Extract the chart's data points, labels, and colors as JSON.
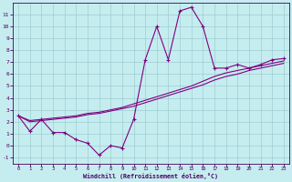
{
  "background_color": "#c5edf0",
  "grid_color": "#9dcdd1",
  "line_color": "#800080",
  "xlim": [
    -0.5,
    23.5
  ],
  "ylim": [
    -1.5,
    12.0
  ],
  "xticks": [
    0,
    1,
    2,
    3,
    4,
    5,
    6,
    7,
    8,
    9,
    10,
    11,
    12,
    13,
    14,
    15,
    16,
    17,
    18,
    19,
    20,
    21,
    22,
    23
  ],
  "yticks": [
    -1,
    0,
    1,
    2,
    3,
    4,
    5,
    6,
    7,
    8,
    9,
    10,
    11
  ],
  "xlabel": "Windchill (Refroidissement éolien,°C)",
  "hours": [
    0,
    1,
    2,
    3,
    4,
    5,
    6,
    7,
    8,
    9,
    10,
    11,
    12,
    13,
    14,
    15,
    16,
    17,
    18,
    19,
    20,
    21,
    22,
    23
  ],
  "temp_main": [
    2.5,
    1.2,
    2.2,
    1.1,
    1.1,
    0.5,
    0.2,
    -0.8,
    0.0,
    -0.2,
    2.2,
    7.2,
    10.0,
    7.2,
    11.3,
    11.6,
    10.0,
    6.5,
    6.5,
    6.8,
    6.5,
    6.8,
    7.2,
    7.3
  ],
  "temp_reg1": [
    2.5,
    2.1,
    2.2,
    2.3,
    2.4,
    2.5,
    2.7,
    2.8,
    3.0,
    3.2,
    3.5,
    3.8,
    4.1,
    4.4,
    4.7,
    5.0,
    5.4,
    5.8,
    6.1,
    6.3,
    6.5,
    6.7,
    6.9,
    7.1
  ],
  "temp_reg2": [
    2.5,
    2.0,
    2.1,
    2.2,
    2.3,
    2.4,
    2.6,
    2.7,
    2.9,
    3.1,
    3.3,
    3.6,
    3.9,
    4.2,
    4.5,
    4.8,
    5.1,
    5.5,
    5.8,
    6.0,
    6.3,
    6.5,
    6.7,
    6.9
  ]
}
